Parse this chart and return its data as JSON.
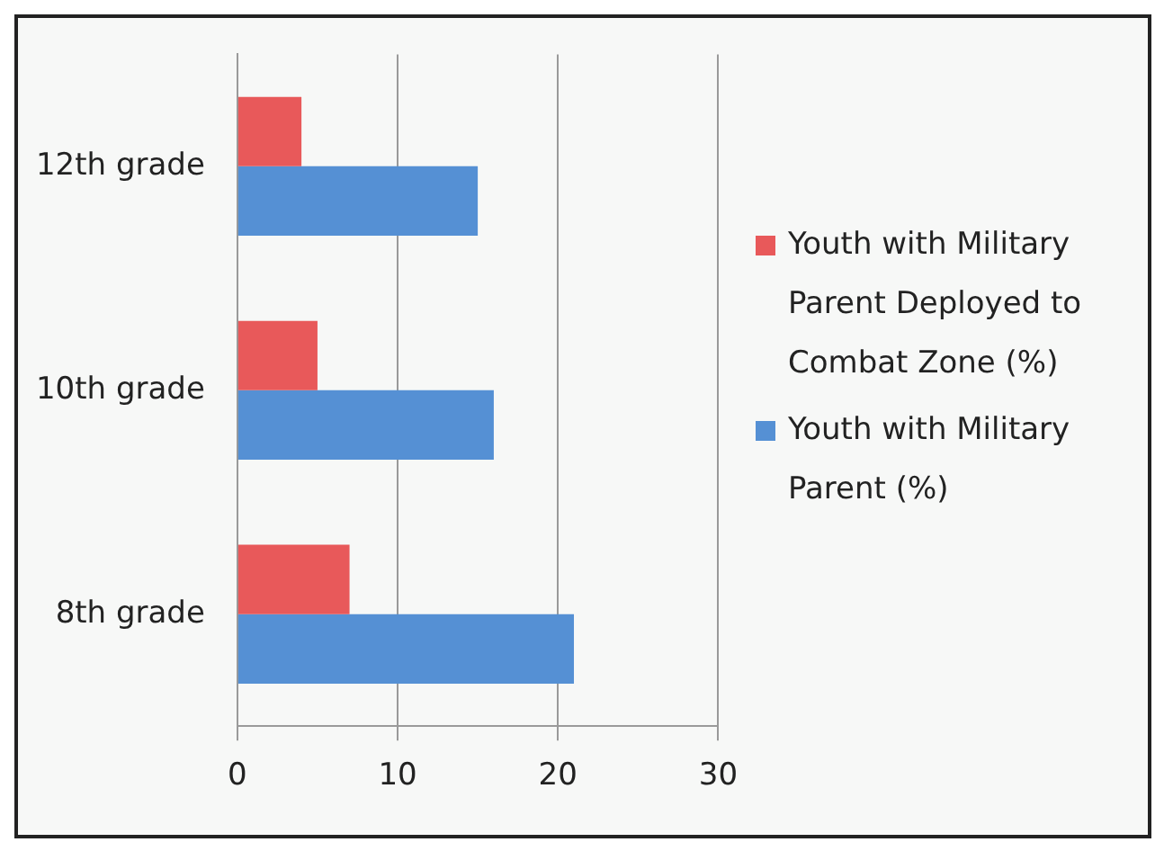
{
  "chart_data": {
    "type": "bar",
    "orientation": "horizontal",
    "categories": [
      "12th grade",
      "10th grade",
      "8th grade"
    ],
    "series": [
      {
        "name": "Youth with Military Parent Deployed to Combat Zone (%)",
        "color": "#e8595a",
        "values": [
          4,
          5,
          7
        ]
      },
      {
        "name": "Youth with Military Parent (%)",
        "color": "#5590d4",
        "values": [
          15,
          16,
          21
        ]
      }
    ],
    "xlim": [
      0,
      30
    ],
    "xticks": [
      0,
      10,
      20,
      30
    ],
    "grid": "x",
    "legend": "right"
  }
}
